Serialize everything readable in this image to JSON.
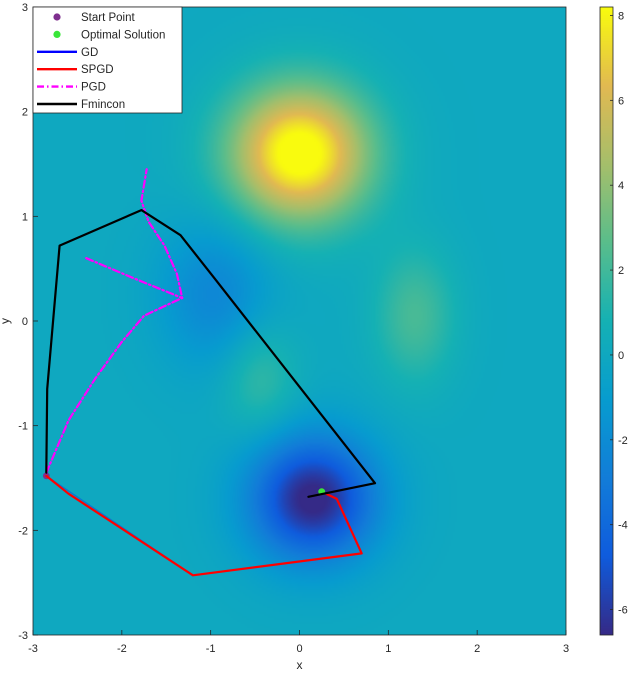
{
  "chart_data": {
    "type": "heatmap",
    "title": "",
    "xlabel": "x",
    "ylabel": "y",
    "xlim": [
      -3,
      3
    ],
    "ylim": [
      -3,
      3
    ],
    "x_ticks": [
      "-3",
      "-2",
      "-1",
      "0",
      "1",
      "2",
      "3"
    ],
    "y_ticks": [
      "3",
      "2",
      "1",
      "0",
      "-1",
      "-2",
      "-3"
    ],
    "colorbar": {
      "range": [
        -6.6,
        8.2
      ],
      "ticks": [
        "8",
        "6",
        "4",
        "2",
        "0",
        "-2",
        "-4",
        "-6"
      ],
      "colormap": "parula"
    },
    "background_field": {
      "bumps": [
        {
          "x0": 0.0,
          "y0": 1.6,
          "sx": 0.55,
          "sy": 0.45,
          "amp": 9.0
        },
        {
          "x0": 1.3,
          "y0": 0.05,
          "sx": 0.32,
          "sy": 0.45,
          "amp": 2.2
        },
        {
          "x0": -0.45,
          "y0": -0.55,
          "sx": 0.3,
          "sy": 0.38,
          "amp": 1.8
        },
        {
          "x0": 0.15,
          "y0": -1.7,
          "sx": 0.5,
          "sy": 0.42,
          "amp": -6.9
        },
        {
          "x0": -0.95,
          "y0": 0.25,
          "sx": 0.45,
          "sy": 0.5,
          "amp": -2.3
        }
      ]
    },
    "legend": {
      "placement": "top-left",
      "entries": [
        {
          "label": "Start Point",
          "color": "#7E2F8E",
          "style": "marker"
        },
        {
          "label": "Optimal Solution",
          "color": "#39E639",
          "style": "marker"
        },
        {
          "label": "GD",
          "color": "#0000FF",
          "style": "solid"
        },
        {
          "label": "SPGD",
          "color": "#FF0000",
          "style": "solid"
        },
        {
          "label": "PGD",
          "color": "#FF00FF",
          "style": "dashdot"
        },
        {
          "label": "Fmincon",
          "color": "#000000",
          "style": "solid"
        }
      ]
    },
    "series": [
      {
        "name": "Start Point",
        "color": "#7E2F8E",
        "type": "marker",
        "points": [
          [
            -2.85,
            -1.48
          ]
        ]
      },
      {
        "name": "Optimal Solution",
        "color": "#39E639",
        "type": "marker",
        "points": [
          [
            0.25,
            -1.63
          ]
        ]
      },
      {
        "name": "GD",
        "color": "#0000FF",
        "type": "line",
        "faded": true,
        "points": [
          [
            -2.85,
            -1.48
          ],
          [
            -1.2,
            -2.43
          ],
          [
            0.7,
            -2.22
          ],
          [
            0.42,
            -1.7
          ]
        ]
      },
      {
        "name": "SPGD",
        "color": "#FF0000",
        "type": "line",
        "points": [
          [
            -2.85,
            -1.48
          ],
          [
            -2.6,
            -1.65
          ],
          [
            -1.2,
            -2.43
          ],
          [
            0.7,
            -2.22
          ],
          [
            0.42,
            -1.7
          ],
          [
            0.3,
            -1.65
          ]
        ]
      },
      {
        "name": "PGD",
        "color": "#FF00FF",
        "type": "line",
        "style": "dashdot",
        "points": [
          [
            -2.85,
            -1.45
          ],
          [
            -2.6,
            -0.95
          ],
          [
            -2.3,
            -0.55
          ],
          [
            -2.0,
            -0.2
          ],
          [
            -1.75,
            0.05
          ],
          [
            -1.5,
            0.15
          ],
          [
            -1.32,
            0.22
          ],
          [
            -1.38,
            0.45
          ],
          [
            -1.52,
            0.72
          ],
          [
            -1.7,
            0.95
          ],
          [
            -1.78,
            1.15
          ],
          [
            -1.72,
            1.45
          ]
        ]
      },
      {
        "name": "PGD",
        "color": "#FF00FF",
        "type": "line",
        "style": "dashdot",
        "points": [
          [
            -2.4,
            0.6
          ],
          [
            -1.9,
            0.42
          ],
          [
            -1.32,
            0.22
          ]
        ]
      },
      {
        "name": "Fmincon",
        "color": "#000000",
        "type": "line",
        "points": [
          [
            -2.85,
            -1.45
          ],
          [
            -2.84,
            -0.65
          ],
          [
            -2.7,
            0.72
          ],
          [
            -1.78,
            1.06
          ],
          [
            -1.34,
            0.82
          ],
          [
            -0.95,
            0.4
          ],
          [
            0.85,
            -1.55
          ],
          [
            0.1,
            -1.68
          ]
        ]
      }
    ]
  }
}
